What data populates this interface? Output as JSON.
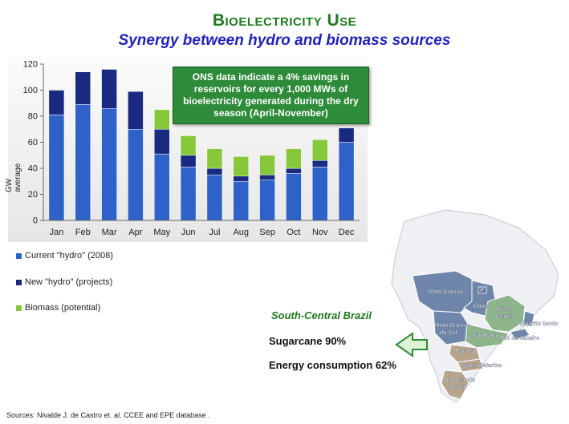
{
  "title": "Bioelectricity Use",
  "subtitle": "Synergy between hydro and biomass sources",
  "note": "ONS data indicate a 4% savings in reservoirs for every 1,000 MWs of bioelectricity generated during the dry season (April-November)",
  "chart_data": {
    "type": "bar",
    "stacked": true,
    "categories": [
      "Jan",
      "Feb",
      "Mar",
      "Apr",
      "May",
      "Jun",
      "Jul",
      "Aug",
      "Sep",
      "Oct",
      "Nov",
      "Dec"
    ],
    "series": [
      {
        "name": "Current \"hydro\" (2008)",
        "color": "#2f62c8",
        "values": [
          81,
          89,
          86,
          70,
          51,
          41,
          35,
          30,
          31,
          36,
          41,
          60
        ]
      },
      {
        "name": "New \"hydro\" (projects)",
        "color": "#1a2a80",
        "values": [
          19,
          25,
          30,
          29,
          19,
          9,
          5,
          4,
          4,
          4,
          5,
          11
        ]
      },
      {
        "name": "Biomass (potential)",
        "color": "#86c83a",
        "values": [
          0,
          0,
          0,
          0,
          15,
          15,
          15,
          15,
          15,
          15,
          16,
          0
        ]
      }
    ],
    "ylabel": "GW average",
    "ylim": [
      0,
      120
    ],
    "yticks": [
      0,
      20,
      40,
      60,
      80,
      100,
      120
    ],
    "grid": false,
    "legend_position": "bottom-left"
  },
  "legend": [
    {
      "label": "Current \"hydro\" (2008)",
      "color": "#2f62c8"
    },
    {
      "label": "New \"hydro\" (projects)",
      "color": "#1a2a80"
    },
    {
      "label": "Biomass (potential)",
      "color": "#86c83a"
    }
  ],
  "region_title": "South-Central Brazil",
  "stats": {
    "sugarcane": "Sugarcane 90%",
    "energy": "Energy consumption 62%"
  },
  "map_labels": {
    "mato_grosso": "Mato Grosso",
    "df": "DF",
    "goias": "Goiás",
    "minas_gerais_1": "Minas",
    "minas_gerais_2": "Gerais",
    "mato_grosso_sul_1": "Mato Grosso",
    "mato_grosso_sul_2": "do Sul",
    "espirito_santo": "Espírito Santo",
    "sao_paulo": "São Paulo",
    "rio_de_janeiro": "Rio de Janeiro",
    "parana": "Paraná",
    "santa_catarina": "Santa Catarina",
    "rio_grande_sul_1": "Rio Grande",
    "rio_grande_sul_2": "do Sul"
  },
  "source": "Sources: Nivalde J. de Castro et. al. CCEE and EPE database ."
}
